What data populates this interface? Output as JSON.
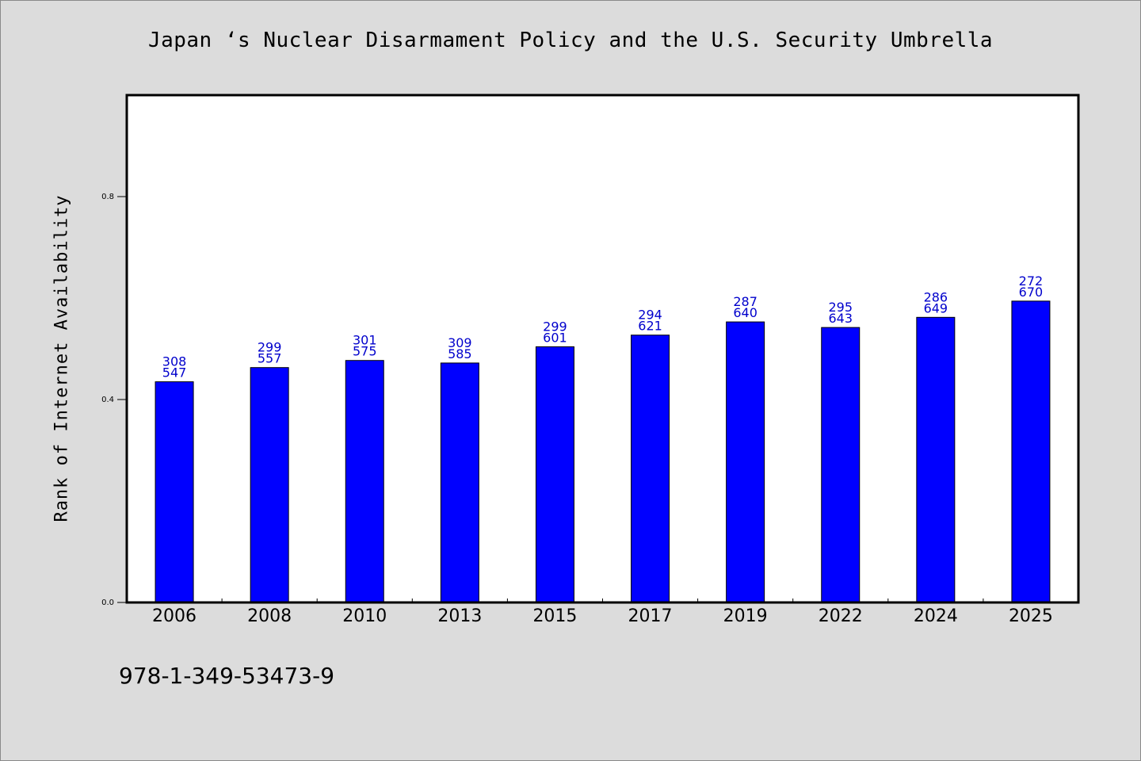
{
  "title": "Japan ‘s Nuclear Disarmament Policy and the U.S. Security Umbrella",
  "footer_text": "978-1-349-53473-9",
  "chart_data": {
    "type": "bar",
    "title": "Japan ‘s Nuclear Disarmament Policy and the U.S. Security Umbrella",
    "xlabel": "",
    "ylabel": "Rank of Internet Availability",
    "categories": [
      "2006",
      "2008",
      "2010",
      "2013",
      "2015",
      "2017",
      "2019",
      "2022",
      "2024",
      "2025"
    ],
    "values": [
      0.435,
      0.463,
      0.477,
      0.472,
      0.504,
      0.527,
      0.553,
      0.542,
      0.562,
      0.594
    ],
    "label_top": [
      "308",
      "299",
      "301",
      "309",
      "299",
      "294",
      "287",
      "295",
      "286",
      "272"
    ],
    "label_bottom": [
      "547",
      "557",
      "575",
      "585",
      "601",
      "621",
      "640",
      "643",
      "649",
      "670"
    ],
    "ylim": [
      0.0,
      1.0
    ],
    "yticks": [
      "0.0",
      "0.4",
      "0.8"
    ],
    "grid": false,
    "colors": {
      "bar": "#0000ff",
      "data_label": "#0000cc",
      "axis": "#000000",
      "plot_bg": "#ffffff"
    }
  }
}
